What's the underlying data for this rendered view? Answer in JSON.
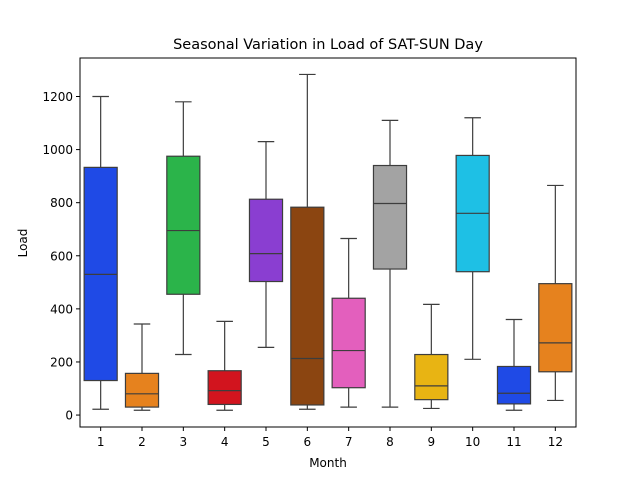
{
  "chart_data": {
    "type": "box",
    "title": "Seasonal Variation in Load of SAT-SUN Day",
    "xlabel": "Month",
    "ylabel": "Load",
    "categories": [
      "1",
      "2",
      "3",
      "4",
      "5",
      "6",
      "7",
      "8",
      "9",
      "10",
      "11",
      "12"
    ],
    "ylim": [
      -45,
      1345
    ],
    "yticks": [
      0,
      200,
      400,
      600,
      800,
      1000,
      1200
    ],
    "grid": false,
    "boxes": [
      {
        "category": "1",
        "min": 22,
        "q1": 130,
        "median": 530,
        "q3": 933,
        "max": 1200,
        "color": "#1f4ae6"
      },
      {
        "category": "2",
        "min": 18,
        "q1": 30,
        "median": 80,
        "q3": 157,
        "max": 343,
        "color": "#e6821e"
      },
      {
        "category": "3",
        "min": 228,
        "q1": 455,
        "median": 695,
        "q3": 975,
        "max": 1180,
        "color": "#2bb44a"
      },
      {
        "category": "4",
        "min": 18,
        "q1": 40,
        "median": 92,
        "q3": 167,
        "max": 353,
        "color": "#d2141e"
      },
      {
        "category": "5",
        "min": 255,
        "q1": 503,
        "median": 608,
        "q3": 813,
        "max": 1030,
        "color": "#8a3ed1"
      },
      {
        "category": "6",
        "min": 22,
        "q1": 38,
        "median": 213,
        "q3": 783,
        "max": 1283,
        "color": "#8b4511"
      },
      {
        "category": "7",
        "min": 30,
        "q1": 103,
        "median": 243,
        "q3": 440,
        "max": 665,
        "color": "#e35fbd"
      },
      {
        "category": "8",
        "min": 30,
        "q1": 550,
        "median": 797,
        "q3": 940,
        "max": 1110,
        "color": "#a3a3a3"
      },
      {
        "category": "9",
        "min": 25,
        "q1": 58,
        "median": 110,
        "q3": 228,
        "max": 417,
        "color": "#e8b413"
      },
      {
        "category": "10",
        "min": 210,
        "q1": 540,
        "median": 760,
        "q3": 978,
        "max": 1120,
        "color": "#1ec0e5"
      },
      {
        "category": "11",
        "min": 18,
        "q1": 42,
        "median": 82,
        "q3": 183,
        "max": 360,
        "color": "#1f4ae6"
      },
      {
        "category": "12",
        "min": 55,
        "q1": 163,
        "median": 272,
        "q3": 495,
        "max": 865,
        "color": "#e6821e"
      }
    ]
  }
}
